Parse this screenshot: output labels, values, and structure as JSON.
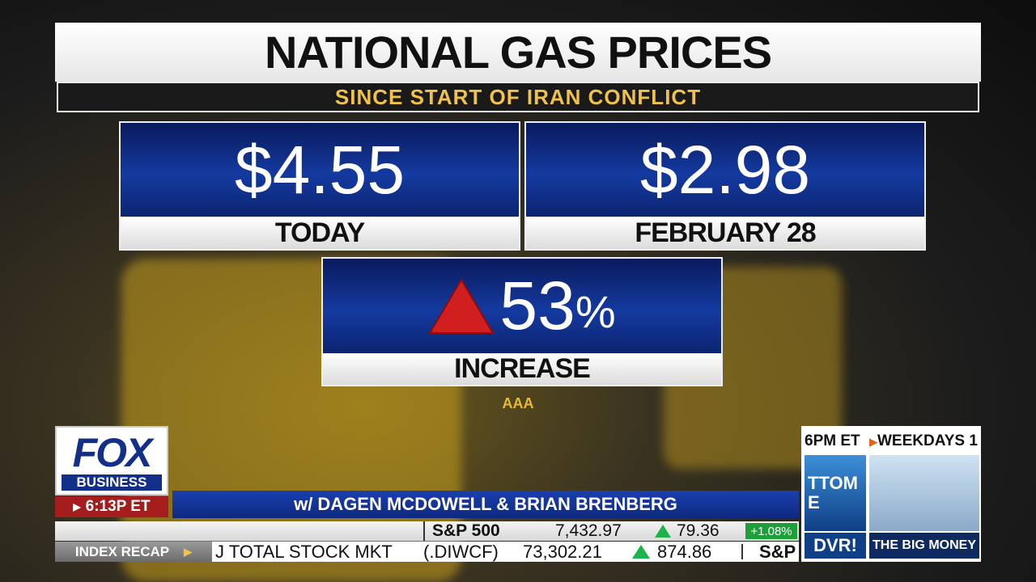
{
  "header": {
    "title": "NATIONAL GAS PRICES",
    "subtitle": "SINCE START OF IRAN CONFLICT"
  },
  "panels": [
    {
      "value": "$4.55",
      "label": "TODAY"
    },
    {
      "value": "$2.98",
      "label": "FEBRUARY 28"
    }
  ],
  "change": {
    "value": "53",
    "unit": "%",
    "label": "INCREASE"
  },
  "source": "AAA",
  "logo": {
    "name": "FOX",
    "sub": "BUSINESS",
    "time": "6:13P ET"
  },
  "show": "w/ DAGEN MCDOWELL & BRIAN BRENBERG",
  "ticker": {
    "index": "S&P 500",
    "level": "7,432.97",
    "change": "79.36",
    "percent": "+1.08%",
    "label": "INDEX RECAP",
    "name": "J TOTAL STOCK MKT",
    "symbol": "(.DIWCF)",
    "level2": "73,302.21",
    "change2": "874.86",
    "next": "S&P"
  },
  "promo": {
    "time": "6PM ET",
    "schedule": "WEEKDAYS 1",
    "show_fragment": "TTOM",
    "show_fragment2": "E",
    "dvr": "DVR!",
    "next_show": "THE BIG MONEY"
  }
}
